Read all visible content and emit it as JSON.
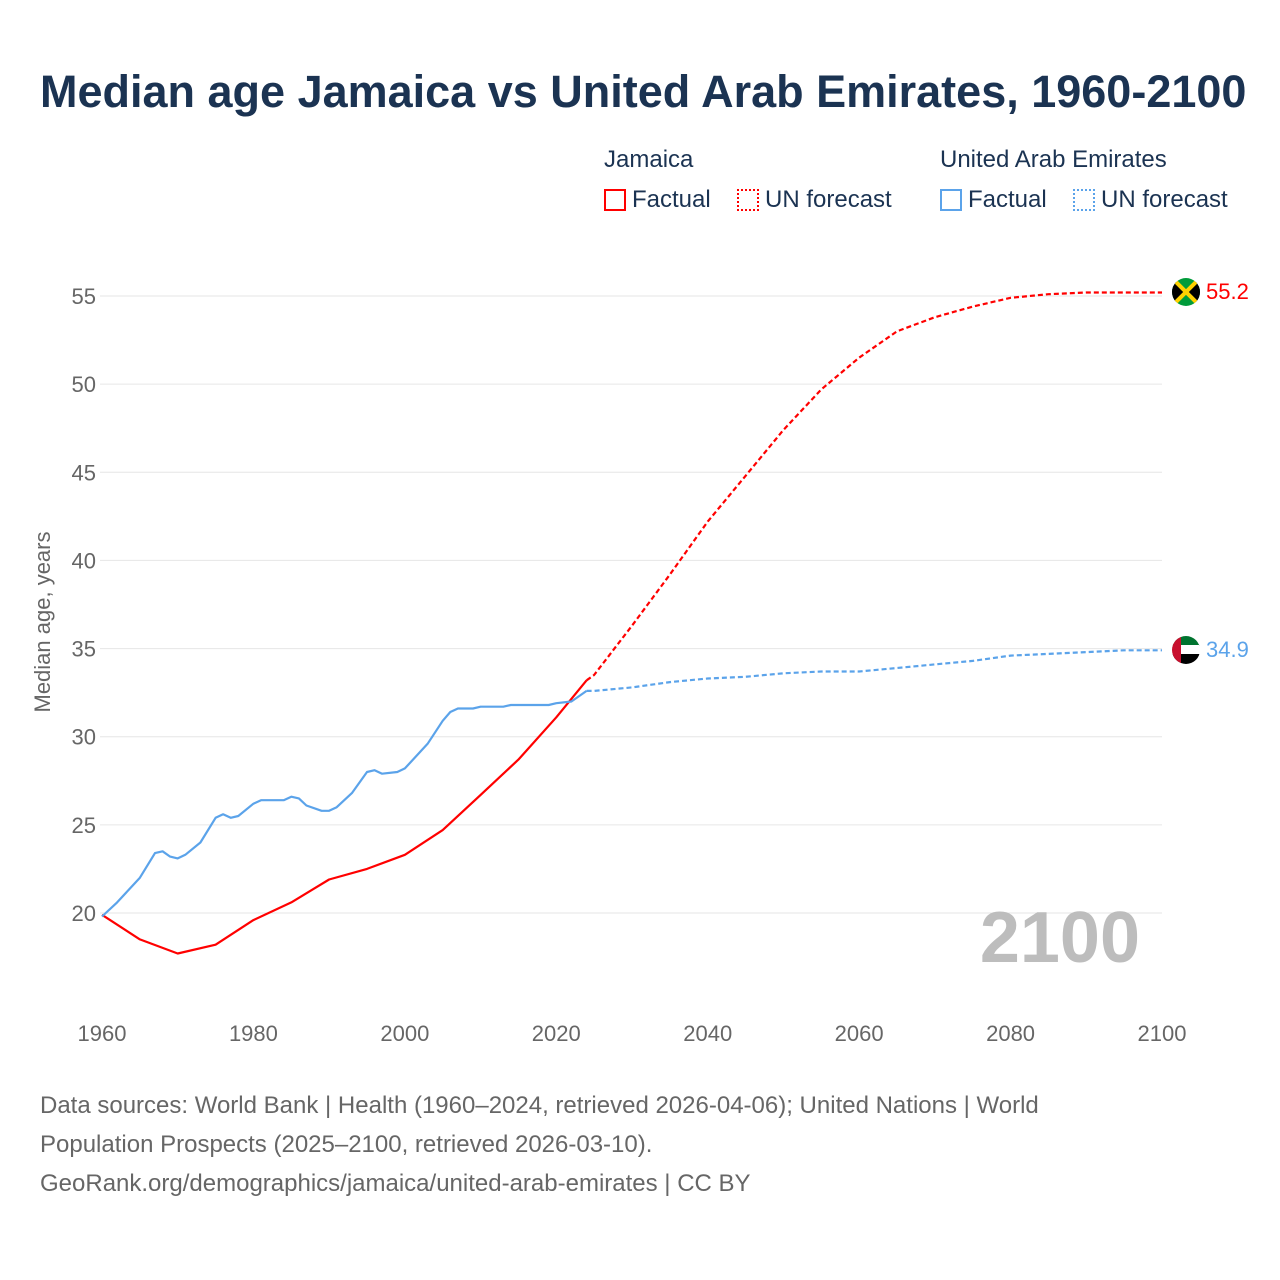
{
  "title": "Median age Jamaica vs United Arab Emirates, 1960-2100",
  "legend": {
    "groups": [
      {
        "name": "Jamaica",
        "factual": "Factual",
        "forecast": "UN forecast",
        "color": "#ff0000"
      },
      {
        "name": "United Arab Emirates",
        "factual": "Factual",
        "forecast": "UN forecast",
        "color": "#5ba3ea"
      }
    ]
  },
  "year_label": "2100",
  "end_labels": {
    "jamaica": "55.2",
    "uae": "34.9"
  },
  "footer": {
    "line1": "Data sources: World Bank | Health (1960–2024, retrieved 2026-04-06); United Nations | World",
    "line2": "Population Prospects (2025–2100, retrieved 2026-03-10).",
    "line3": "GeoRank.org/demographics/jamaica/united-arab-emirates | CC BY"
  },
  "chart_data": {
    "type": "line",
    "title": "Median age Jamaica vs United Arab Emirates, 1960-2100",
    "xlabel": "",
    "ylabel": "Median age, years",
    "xlim": [
      1960,
      2100
    ],
    "ylim": [
      15,
      57
    ],
    "xticks": [
      "1960",
      "1980",
      "2000",
      "2020",
      "2040",
      "2060",
      "2080",
      "2100"
    ],
    "yticks": [
      "20",
      "25",
      "30",
      "35",
      "40",
      "45",
      "50",
      "55"
    ],
    "grid": true,
    "series": [
      {
        "name": "Jamaica Factual",
        "color": "#ff0000",
        "dashed": false,
        "x": [
          1960,
          1965,
          1970,
          1975,
          1980,
          1985,
          1990,
          1995,
          2000,
          2005,
          2010,
          2015,
          2020,
          2024
        ],
        "y": [
          19.9,
          18.5,
          17.7,
          18.2,
          19.6,
          20.6,
          21.9,
          22.5,
          23.3,
          24.7,
          26.7,
          28.7,
          31.1,
          33.2
        ]
      },
      {
        "name": "Jamaica UN forecast",
        "color": "#ff0000",
        "dashed": true,
        "x": [
          2024,
          2025,
          2030,
          2035,
          2040,
          2045,
          2050,
          2055,
          2060,
          2065,
          2070,
          2075,
          2080,
          2085,
          2090,
          2095,
          2100
        ],
        "y": [
          33.2,
          33.5,
          36.3,
          39.2,
          42.2,
          44.8,
          47.4,
          49.7,
          51.5,
          53.0,
          53.8,
          54.4,
          54.9,
          55.1,
          55.2,
          55.2,
          55.2
        ]
      },
      {
        "name": "United Arab Emirates Factual",
        "color": "#5ba3ea",
        "dashed": false,
        "x": [
          1960,
          1962,
          1965,
          1967,
          1968,
          1969,
          1970,
          1971,
          1973,
          1975,
          1976,
          1977,
          1978,
          1980,
          1981,
          1984,
          1985,
          1986,
          1987,
          1989,
          1990,
          1991,
          1993,
          1995,
          1996,
          1997,
          1999,
          2000,
          2003,
          2005,
          2006,
          2007,
          2009,
          2010,
          2013,
          2014,
          2019,
          2020,
          2022,
          2024
        ],
        "y": [
          19.8,
          20.6,
          22.0,
          23.4,
          23.5,
          23.2,
          23.1,
          23.3,
          24.0,
          25.4,
          25.6,
          25.4,
          25.5,
          26.2,
          26.4,
          26.4,
          26.6,
          26.5,
          26.1,
          25.8,
          25.8,
          26.0,
          26.8,
          28.0,
          28.1,
          27.9,
          28.0,
          28.2,
          29.6,
          30.9,
          31.4,
          31.6,
          31.6,
          31.7,
          31.7,
          31.8,
          31.8,
          31.9,
          32.0,
          32.6
        ]
      },
      {
        "name": "United Arab Emirates UN forecast",
        "color": "#5ba3ea",
        "dashed": true,
        "x": [
          2024,
          2025,
          2030,
          2035,
          2040,
          2045,
          2050,
          2055,
          2060,
          2065,
          2070,
          2075,
          2080,
          2085,
          2090,
          2095,
          2100
        ],
        "y": [
          32.6,
          32.6,
          32.8,
          33.1,
          33.3,
          33.4,
          33.6,
          33.7,
          33.7,
          33.9,
          34.1,
          34.3,
          34.6,
          34.7,
          34.8,
          34.9,
          34.9
        ]
      }
    ]
  }
}
